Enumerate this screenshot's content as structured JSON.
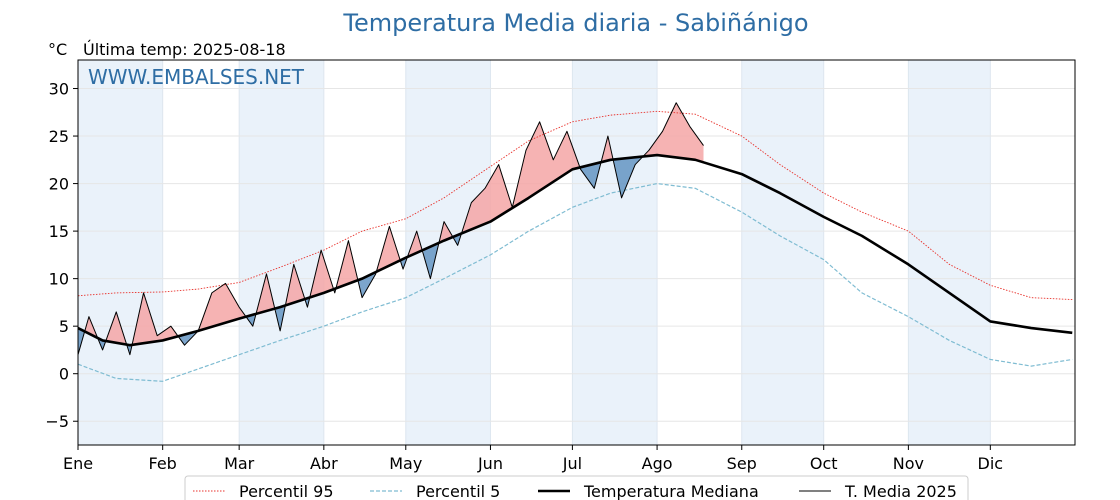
{
  "chart_data": {
    "type": "line",
    "title": "Temperatura Media diaria - Sabiñánigo",
    "unit_label": "°C",
    "last_temp_label": "Última temp: 2025-08-18",
    "watermark": "WWW.EMBALSES.NET",
    "ylim": [
      -7.5,
      33
    ],
    "yticks": [
      -5,
      0,
      5,
      10,
      15,
      20,
      25,
      30
    ],
    "ytick_labels": [
      "−5",
      "0",
      "5",
      "10",
      "15",
      "20",
      "25",
      "30"
    ],
    "months": [
      "Ene",
      "Feb",
      "Mar",
      "Abr",
      "May",
      "Jun",
      "Jul",
      "Ago",
      "Sep",
      "Oct",
      "Nov",
      "Dic"
    ],
    "month_start_days": [
      1,
      32,
      60,
      91,
      121,
      152,
      182,
      213,
      244,
      274,
      305,
      335
    ],
    "days_in_year": 365,
    "grid": true,
    "legend_position": "bottom",
    "colors": {
      "title": "#2e6da4",
      "p95": "#e8322c",
      "p5": "#7fbcd2",
      "median": "#000000",
      "actual": "#000000",
      "above_fill": "#f4a6a6",
      "above_fill_strong": "#e05050",
      "below_fill": "#5b8ebf",
      "band": "#eaf2fa"
    },
    "series": [
      {
        "name": "Percentil 95",
        "style": "dotted-red",
        "x": [
          1,
          15,
          32,
          45,
          60,
          75,
          91,
          105,
          121,
          135,
          152,
          166,
          182,
          196,
          213,
          227,
          244,
          258,
          274,
          288,
          305,
          320,
          335,
          350,
          365
        ],
        "y": [
          8.2,
          8.5,
          8.6,
          8.9,
          9.6,
          11.2,
          13.0,
          15.0,
          16.3,
          18.5,
          21.8,
          24.5,
          26.5,
          27.2,
          27.6,
          27.3,
          25.0,
          22.0,
          19.0,
          17.0,
          15.0,
          11.5,
          9.3,
          8.0,
          7.8
        ]
      },
      {
        "name": "Percentil 5",
        "style": "dashed-lightblue",
        "x": [
          1,
          15,
          32,
          45,
          60,
          75,
          91,
          105,
          121,
          135,
          152,
          166,
          182,
          196,
          213,
          227,
          244,
          258,
          274,
          288,
          305,
          320,
          335,
          350,
          365
        ],
        "y": [
          1.0,
          -0.5,
          -0.8,
          0.5,
          2.0,
          3.5,
          5.0,
          6.5,
          8.0,
          10.0,
          12.5,
          15.0,
          17.5,
          19.0,
          20.0,
          19.5,
          17.0,
          14.5,
          12.0,
          8.5,
          6.0,
          3.5,
          1.5,
          0.8,
          1.5
        ]
      },
      {
        "name": "Temperatura Mediana",
        "style": "thick-black",
        "x": [
          1,
          10,
          20,
          32,
          45,
          60,
          75,
          91,
          105,
          121,
          135,
          152,
          166,
          182,
          196,
          213,
          227,
          244,
          258,
          274,
          288,
          305,
          320,
          335,
          350,
          365
        ],
        "y": [
          4.8,
          3.5,
          3.0,
          3.5,
          4.5,
          5.8,
          7.0,
          8.5,
          10.0,
          12.2,
          14.0,
          16.0,
          18.5,
          21.5,
          22.5,
          23.0,
          22.5,
          21.0,
          19.0,
          16.5,
          14.5,
          11.5,
          8.5,
          5.5,
          4.8,
          4.3
        ]
      },
      {
        "name": "T. Media 2025",
        "style": "thin-black",
        "x": [
          1,
          5,
          10,
          15,
          20,
          25,
          30,
          35,
          40,
          45,
          50,
          55,
          60,
          65,
          70,
          75,
          80,
          85,
          90,
          95,
          100,
          105,
          110,
          115,
          120,
          125,
          130,
          135,
          140,
          145,
          150,
          155,
          160,
          165,
          170,
          175,
          180,
          185,
          190,
          195,
          200,
          205,
          210,
          215,
          220,
          225,
          230
        ],
        "y": [
          2.0,
          6.0,
          2.5,
          6.5,
          2.0,
          8.5,
          4.0,
          5.0,
          3.0,
          4.5,
          8.5,
          9.5,
          7.0,
          5.0,
          10.5,
          4.5,
          11.5,
          7.0,
          13.0,
          8.5,
          14.0,
          8.0,
          10.5,
          15.5,
          11.0,
          15.0,
          10.0,
          16.0,
          13.5,
          18.0,
          19.5,
          22.0,
          17.5,
          23.5,
          26.5,
          22.5,
          25.5,
          21.5,
          19.5,
          25.0,
          18.5,
          22.0,
          23.5,
          25.5,
          28.5,
          26.0,
          24.0
        ]
      }
    ]
  }
}
